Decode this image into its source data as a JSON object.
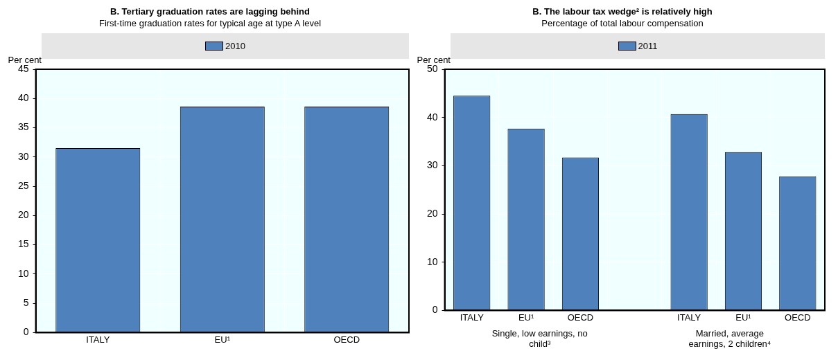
{
  "chart_data": [
    {
      "type": "bar",
      "title": "B.  Tertiary graduation rates are lagging behind",
      "subtitle": "First-time graduation rates for typical age at type A level",
      "ylabel": "Per cent",
      "categories": [
        "ITALY",
        "EU¹",
        "OECD"
      ],
      "series": [
        {
          "name": "2010",
          "color": "#4f81bd",
          "values": [
            31.5,
            38.6,
            38.6
          ]
        }
      ],
      "ylim": [
        0,
        45
      ],
      "yticks": [
        0,
        5,
        10,
        15,
        20,
        25,
        30,
        35,
        40,
        45
      ],
      "grid": true,
      "legend": "top"
    },
    {
      "type": "bar",
      "title": "B.  The labour tax wedge² is relatively high",
      "subtitle": "Percentage of total labour compensation",
      "ylabel": "Per cent",
      "categories": [
        "ITALY",
        "EU¹",
        "OECD",
        null,
        "ITALY",
        "EU¹",
        "OECD"
      ],
      "series": [
        {
          "name": "2011",
          "color": "#4f81bd",
          "values": [
            44.5,
            37.7,
            31.7,
            null,
            40.7,
            32.8,
            27.8
          ]
        }
      ],
      "ylim": [
        0,
        50
      ],
      "yticks": [
        0,
        10,
        20,
        30,
        40,
        50
      ],
      "grid": true,
      "legend": "top",
      "annotations": [
        "Single, low earnings, no child³",
        "Married, average earnings, 2 children⁴"
      ]
    }
  ]
}
